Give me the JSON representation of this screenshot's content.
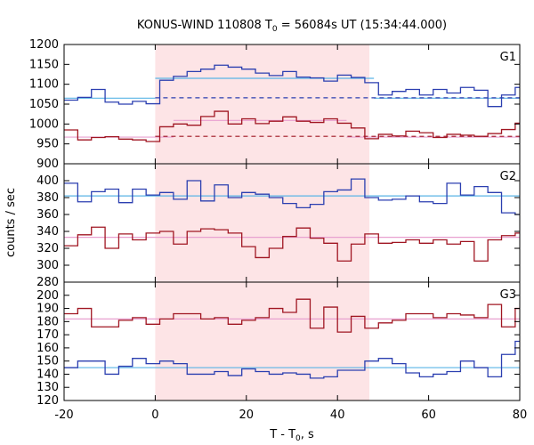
{
  "chart_data": {
    "type": "line",
    "title": "KONUS-WIND 110808 T",
    "title_sub": "0",
    "title_rest": " = 56084s UT (15:34:44.000)",
    "xlabel": "T - T",
    "xlabel_sub": "0",
    "xlabel_rest": ", s",
    "ylabel": "counts / sec",
    "xlim": [
      -20,
      80
    ],
    "x_ticks": [
      -20,
      0,
      20,
      40,
      60,
      80
    ],
    "x_tick_labels": [
      "-20",
      "0",
      "20",
      "40",
      "60",
      "80"
    ],
    "highlight_interval": [
      0,
      47
    ],
    "bin_edges": [
      -20,
      -17,
      -14,
      -11,
      -8,
      -5,
      -2,
      1,
      4,
      7,
      10,
      13,
      16,
      19,
      22,
      25,
      28,
      31,
      34,
      37,
      40,
      43,
      46,
      49,
      52,
      55,
      58,
      61,
      64,
      67,
      70,
      73,
      76,
      79,
      80
    ],
    "panels": [
      {
        "label": "G1",
        "ylim": [
          900,
          1200
        ],
        "y_ticks": [
          900,
          950,
          1000,
          1050,
          1100,
          1150,
          1200
        ],
        "series": [
          {
            "color": "#2b3fb0",
            "values": [
              1060,
              1067,
              1087,
              1055,
              1050,
              1057,
              1051,
              1110,
              1120,
              1132,
              1138,
              1148,
              1143,
              1138,
              1128,
              1122,
              1132,
              1118,
              1116,
              1108,
              1123,
              1117,
              1104,
              1073,
              1082,
              1087,
              1073,
              1087,
              1078,
              1092,
              1085,
              1044,
              1073,
              1092
            ]
          },
          {
            "color": "#a01622",
            "values": [
              985,
              960,
              966,
              968,
              962,
              960,
              956,
              993,
              1000,
              997,
              1019,
              1032,
              1000,
              1013,
              1001,
              1007,
              1018,
              1007,
              1004,
              1013,
              1002,
              990,
              963,
              974,
              970,
              982,
              978,
              966,
              974,
              972,
              969,
              976,
              986,
              1002
            ]
          }
        ],
        "fits": [
          {
            "color": "#5ab4e6",
            "style": "solid",
            "segments": [
              [
                -20,
                0,
                1065
              ],
              [
                0,
                48,
                1115
              ],
              [
                48,
                80,
                1065
              ]
            ]
          },
          {
            "color": "#2b3fb0",
            "style": "dashed",
            "segments": [
              [
                0,
                80,
                1066
              ]
            ]
          },
          {
            "color": "#e8a0d0",
            "style": "solid",
            "segments": [
              [
                -20,
                4,
                967
              ],
              [
                4,
                42,
                1009
              ],
              [
                42,
                80,
                967
              ]
            ]
          },
          {
            "color": "#a01622",
            "style": "dashed",
            "segments": [
              [
                0,
                80,
                969
              ]
            ]
          }
        ]
      },
      {
        "label": "G2",
        "ylim": [
          280,
          420
        ],
        "y_ticks": [
          280,
          300,
          320,
          340,
          360,
          380,
          400
        ],
        "series": [
          {
            "color": "#2b3fb0",
            "values": [
              397,
              375,
              387,
              390,
              374,
              390,
              383,
              386,
              378,
              400,
              376,
              395,
              380,
              386,
              384,
              380,
              373,
              368,
              372,
              387,
              389,
              402,
              380,
              377,
              378,
              382,
              375,
              373,
              397,
              383,
              393,
              386,
              362,
              360
            ]
          },
          {
            "color": "#a01622",
            "values": [
              323,
              336,
              345,
              320,
              337,
              330,
              338,
              340,
              325,
              340,
              343,
              342,
              338,
              322,
              309,
              320,
              334,
              344,
              332,
              326,
              305,
              325,
              337,
              326,
              327,
              330,
              326,
              330,
              325,
              328,
              305,
              330,
              335,
              338
            ]
          }
        ],
        "fits": [
          {
            "color": "#5ab4e6",
            "style": "solid",
            "segments": [
              [
                -20,
                80,
                382
              ]
            ]
          },
          {
            "color": "#e8a0d0",
            "style": "solid",
            "segments": [
              [
                -20,
                80,
                333
              ]
            ]
          }
        ]
      },
      {
        "label": "G3",
        "ylim": [
          120,
          210
        ],
        "y_ticks": [
          120,
          130,
          140,
          150,
          160,
          170,
          180,
          190,
          200
        ],
        "series": [
          {
            "color": "#2b3fb0",
            "values": [
              145,
              150,
              150,
              140,
              146,
              152,
              148,
              150,
              148,
              140,
              140,
              142,
              139,
              144,
              142,
              140,
              141,
              140,
              137,
              138,
              143,
              143,
              150,
              152,
              148,
              141,
              138,
              140,
              142,
              150,
              145,
              138,
              155,
              165
            ]
          },
          {
            "color": "#a01622",
            "values": [
              186,
              190,
              176,
              176,
              181,
              183,
              178,
              182,
              186,
              186,
              182,
              183,
              178,
              181,
              183,
              190,
              187,
              197,
              175,
              191,
              172,
              184,
              175,
              179,
              181,
              186,
              186,
              183,
              186,
              185,
              183,
              193,
              176,
              190
            ]
          }
        ],
        "fits": [
          {
            "color": "#5ab4e6",
            "style": "solid",
            "segments": [
              [
                -20,
                80,
                145
              ]
            ]
          },
          {
            "color": "#e8a0d0",
            "style": "solid",
            "segments": [
              [
                -20,
                80,
                182
              ]
            ]
          }
        ]
      }
    ],
    "colors": {
      "highlight": "#fde4e6"
    }
  }
}
